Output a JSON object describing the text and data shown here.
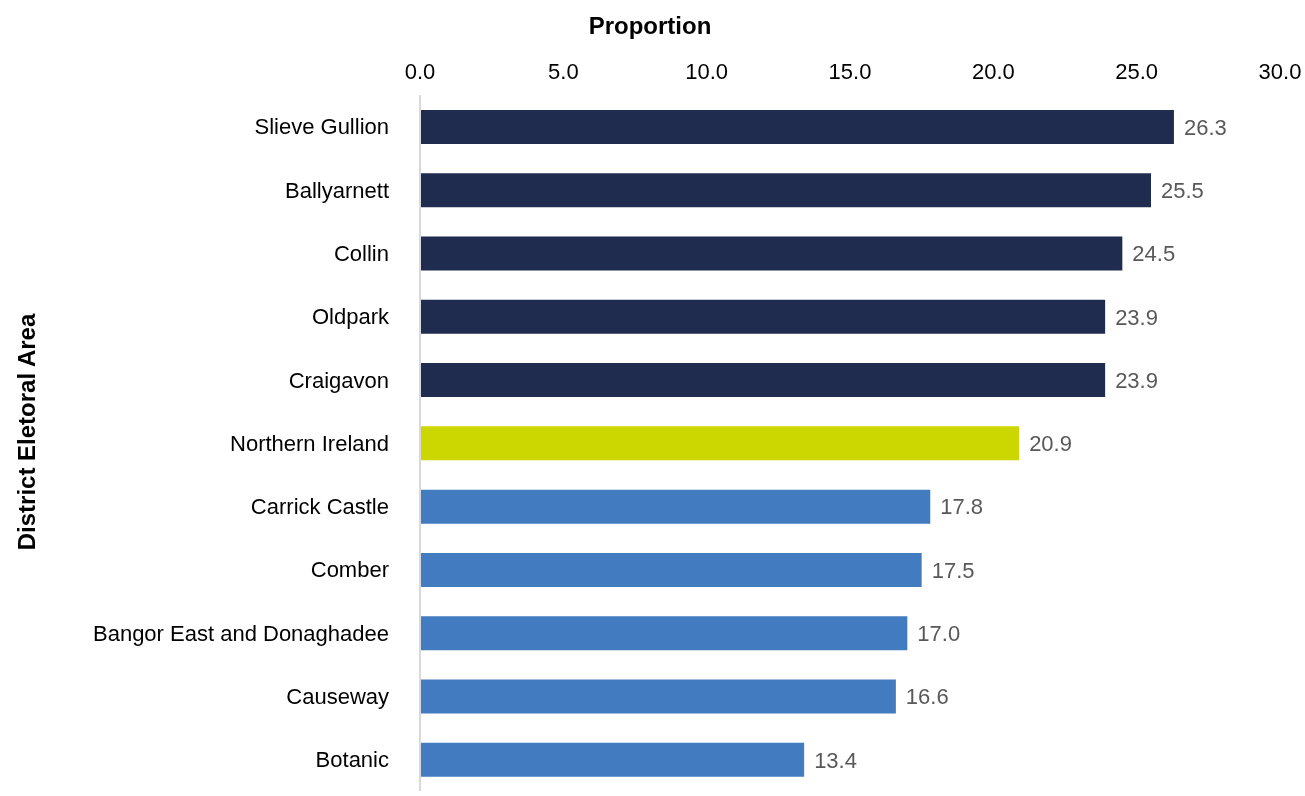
{
  "chart_data": {
    "type": "bar",
    "orientation": "horizontal",
    "xlabel": "Proportion",
    "ylabel": "District Eletoral Area",
    "categories": [
      "Slieve Gullion",
      "Ballyarnett",
      "Collin",
      "Oldpark",
      "Craigavon",
      "Northern Ireland",
      "Carrick Castle",
      "Comber",
      "Bangor East and Donaghadee",
      "Causeway",
      "Botanic"
    ],
    "values": [
      26.3,
      25.5,
      24.5,
      23.9,
      23.9,
      20.9,
      17.8,
      17.5,
      17.0,
      16.6,
      13.4
    ],
    "value_labels": [
      "26.3",
      "25.5",
      "24.5",
      "23.9",
      "23.9",
      "20.9",
      "17.8",
      "17.5",
      "17.0",
      "16.6",
      "13.4"
    ],
    "colors": [
      "#1f2c4f",
      "#1f2c4f",
      "#1f2c4f",
      "#1f2c4f",
      "#1f2c4f",
      "#ccd600",
      "#427bbf",
      "#427bbf",
      "#427bbf",
      "#427bbf",
      "#427bbf"
    ],
    "xlim": [
      0,
      30
    ],
    "xticks": [
      {
        "value": 0,
        "label": "0.0"
      },
      {
        "value": 5,
        "label": "5.0"
      },
      {
        "value": 10,
        "label": "10.0"
      },
      {
        "value": 15,
        "label": "15.0"
      },
      {
        "value": 20,
        "label": "20.0"
      },
      {
        "value": 25,
        "label": "25.0"
      },
      {
        "value": 30,
        "label": "30.0"
      }
    ]
  }
}
